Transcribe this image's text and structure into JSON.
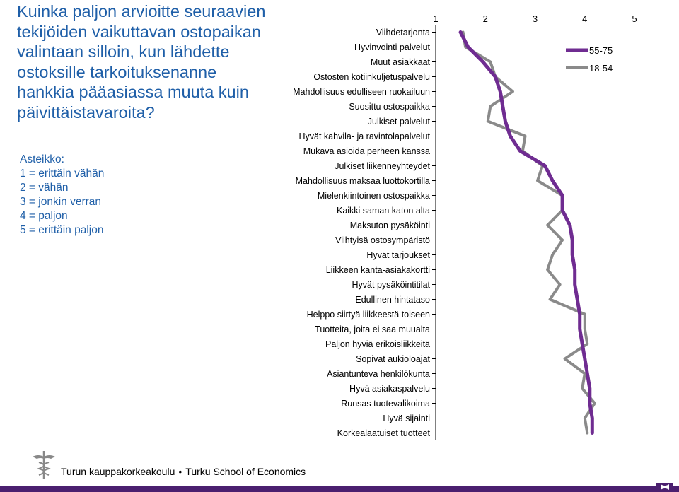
{
  "title": "Kuinka paljon arvioitte seuraavien tekijöiden vaikuttavan ostopaikan valintaan silloin, kun lähdette ostoksille tarkoituksenanne hankkia pääasiassa muuta kuin päivittäistavaroita?",
  "scale": {
    "heading": "Asteikko:",
    "lines": [
      "1 = erittäin vähän",
      "2 = vähän",
      "3 = jonkin verran",
      "4 = paljon",
      "5 = erittäin paljon"
    ]
  },
  "footer": {
    "left": "Turun kauppakorkeakoulu",
    "separator": "•",
    "right": "Turku School of Economics"
  },
  "colors": {
    "title": "#1f5fa8",
    "series_55_75": "#6f2c91",
    "series_18_54": "#8a8a8a",
    "footer_band": "#4b1f6f"
  },
  "chart_data": {
    "type": "line",
    "orientation": "horizontal",
    "x_ticks": [
      "1",
      "2",
      "3",
      "4",
      "5"
    ],
    "xlim": [
      1,
      5
    ],
    "legend_position": "top-right",
    "categories": [
      "Viihdetarjonta",
      "Hyvinvointi palvelut",
      "Muut asiakkaat",
      "Ostosten kotiinkuljetuspalvelu",
      "Mahdollisuus edulliseen ruokailuun",
      "Suosittu ostospaikka",
      "Julkiset palvelut",
      "Hyvät kahvila- ja ravintolapalvelut",
      "Mukava asioida perheen kanssa",
      "Julkiset liikenneyhteydet",
      "Mahdollisuus maksaa luottokortilla",
      "Mielenkiintoinen ostospaikka",
      "Kaikki saman katon alta",
      "Maksuton pysäköinti",
      "Viihtyisä ostosympäristö",
      "Hyvät tarjoukset",
      "Liikkeen kanta-asiakakortti",
      "Hyvät pysäköintitilat",
      "Edullinen hintataso",
      "Helppo siirtyä liikkeestä toiseen",
      "Tuotteita, joita ei saa muualta",
      "Paljon hyviä erikoisliikkeitä",
      "Sopivat aukioloajat",
      "Asiantunteva henkilökunta",
      "Hyvä asiakaspalvelu",
      "Runsas tuotevalikoima",
      "Hyvä sijainti",
      "Korkealaatuiset tuotteet"
    ],
    "series": [
      {
        "name": "55-75",
        "values": [
          1.5,
          1.65,
          1.95,
          2.2,
          2.3,
          2.35,
          2.4,
          2.5,
          2.7,
          3.2,
          3.35,
          3.55,
          3.55,
          3.7,
          3.75,
          3.75,
          3.8,
          3.8,
          3.85,
          3.9,
          3.9,
          3.95,
          4.0,
          4.05,
          4.1,
          4.1,
          4.15,
          4.15
        ]
      },
      {
        "name": "18-54",
        "values": [
          1.55,
          1.6,
          2.1,
          2.2,
          2.55,
          2.1,
          2.05,
          2.8,
          2.75,
          3.15,
          3.05,
          3.55,
          3.55,
          3.25,
          3.55,
          3.35,
          3.25,
          3.5,
          3.3,
          4.0,
          4.0,
          4.05,
          3.6,
          4.0,
          3.95,
          4.2,
          4.0,
          4.05
        ]
      }
    ]
  }
}
